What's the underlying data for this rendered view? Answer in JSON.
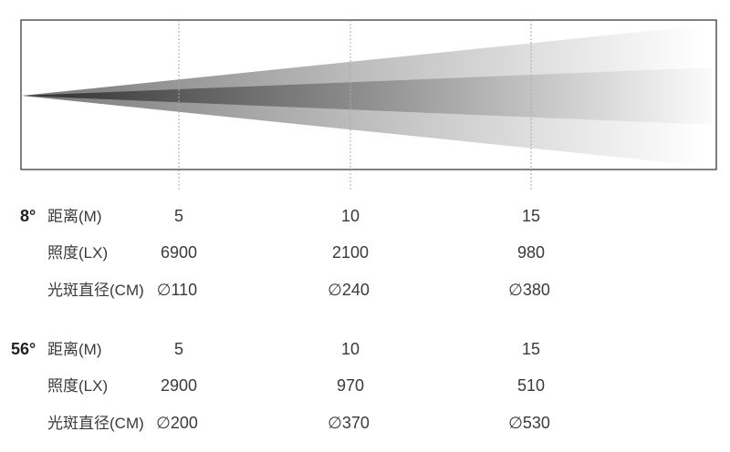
{
  "diagram": {
    "beam_distance_marks": [
      "5",
      "10",
      "15"
    ]
  },
  "specs": [
    {
      "angle": "8°",
      "rows": [
        {
          "label": "距离(M)",
          "values": [
            "5",
            "10",
            "15"
          ]
        },
        {
          "label": "照度(LX)",
          "values": [
            "6900",
            "2100",
            "980"
          ]
        },
        {
          "label": "光斑直径(CM)",
          "values": [
            "∅110",
            "∅240",
            "∅380"
          ]
        }
      ]
    },
    {
      "angle": "56°",
      "rows": [
        {
          "label": "距离(M)",
          "values": [
            "5",
            "10",
            "15"
          ]
        },
        {
          "label": "照度(LX)",
          "values": [
            "2900",
            "970",
            "510"
          ]
        },
        {
          "label": "光斑直径(CM)",
          "values": [
            "∅200",
            "∅370",
            "∅530"
          ]
        }
      ]
    }
  ]
}
